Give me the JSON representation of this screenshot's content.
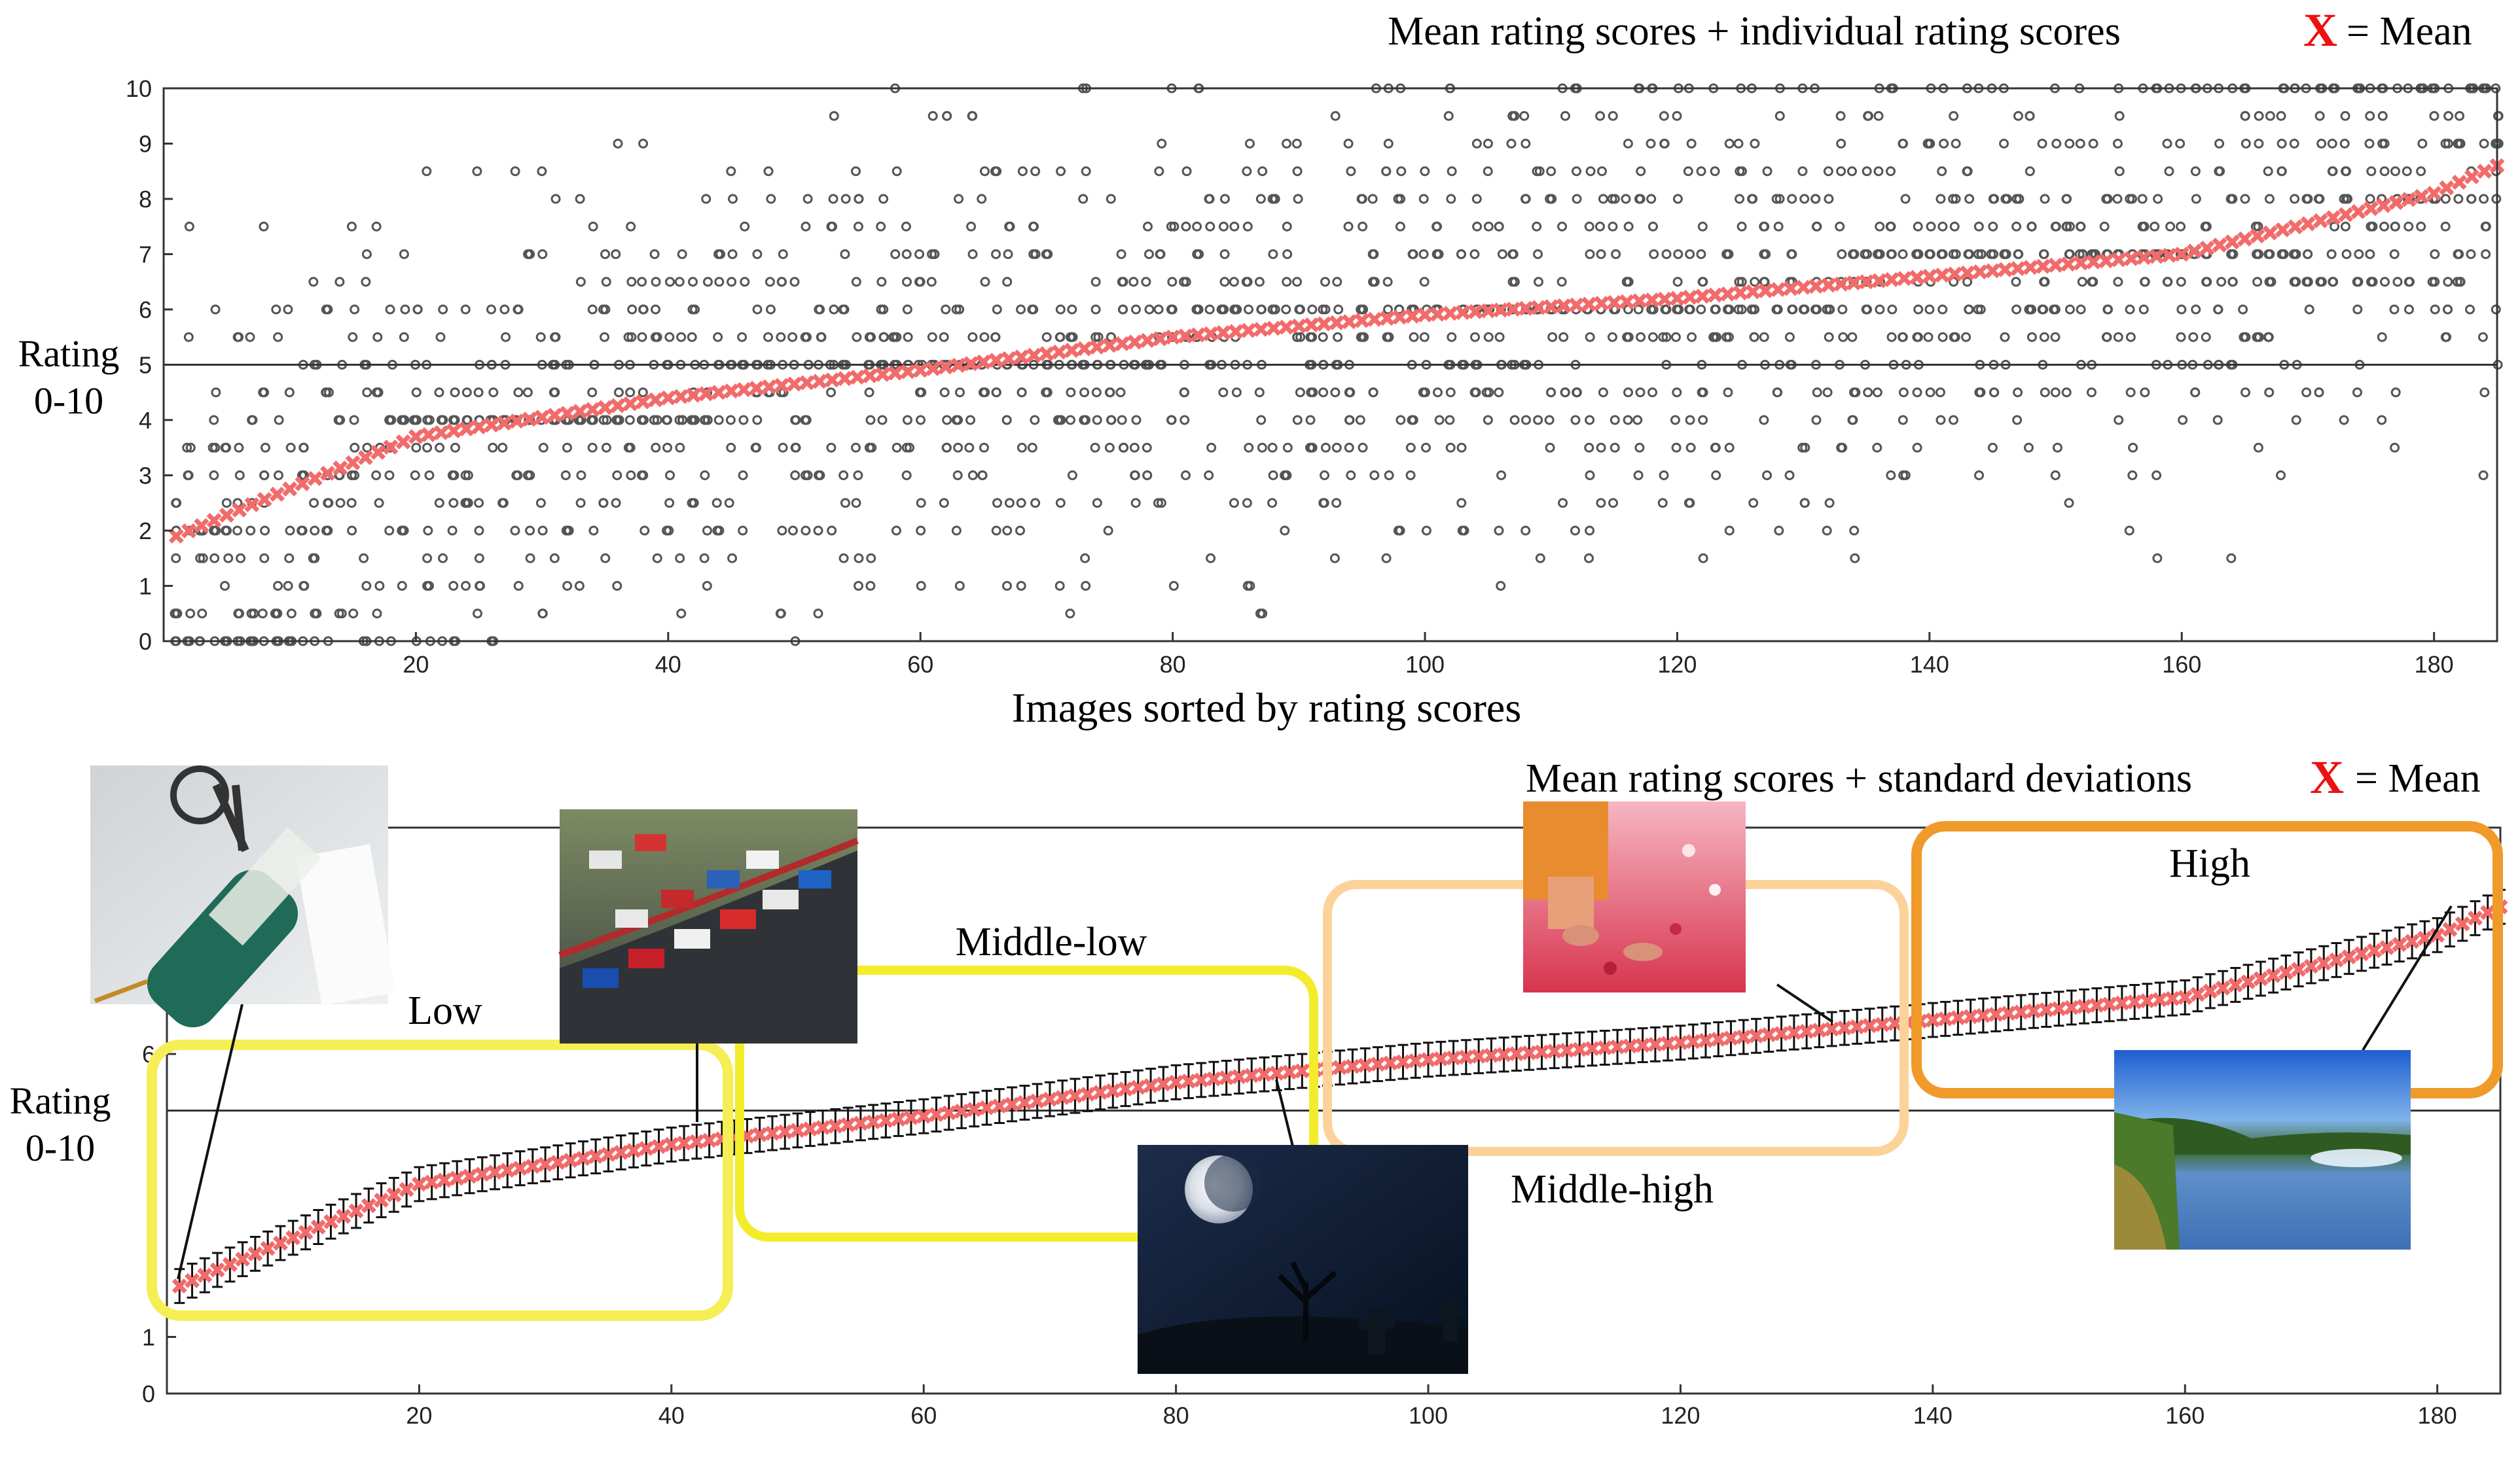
{
  "chart_data": [
    {
      "type": "scatter",
      "title": "Mean rating scores + individual rating scores",
      "legend": {
        "marker": "X",
        "text": "= Mean",
        "marker_color": "#ee1111"
      },
      "xlabel": "Images sorted by rating scores",
      "ylabel": "Rating",
      "ylabel_range_text": "0-10",
      "xlim": [
        0,
        185
      ],
      "ylim": [
        0,
        10
      ],
      "xticks": [
        20,
        40,
        60,
        80,
        100,
        120,
        140,
        160,
        180
      ],
      "yticks": [
        0,
        1,
        2,
        3,
        4,
        5,
        6,
        7,
        8,
        9,
        10
      ],
      "reference_line_y": 5,
      "grid": false,
      "series": [
        {
          "name": "X",
          "color": "#f26b6b",
          "x": [
            1,
            20,
            40,
            60,
            80,
            100,
            120,
            140,
            160,
            180,
            185
          ],
          "y": [
            1.9,
            3.7,
            4.4,
            4.9,
            5.5,
            5.9,
            6.2,
            6.6,
            7.0,
            8.1,
            8.6
          ]
        }
      ],
      "individual_ratings_color": "#555555"
    },
    {
      "type": "line",
      "title": "Mean rating scores + standard deviations",
      "legend": {
        "marker": "X",
        "text": "= Mean",
        "marker_color": "#ee1111"
      },
      "xlabel": "Images sorted by rating scores",
      "ylabel": "Rating",
      "ylabel_range_text": "0-10",
      "xlim": [
        0,
        185
      ],
      "ylim": [
        0,
        10
      ],
      "xticks": [
        20,
        40,
        60,
        80,
        100,
        120,
        140,
        160,
        180
      ],
      "yticks": [
        0,
        1,
        6
      ],
      "reference_line_y": 5,
      "grid": false,
      "series": [
        {
          "name": "X",
          "color": "#f26b6b",
          "x": [
            1,
            20,
            40,
            60,
            80,
            100,
            120,
            140,
            160,
            180,
            185
          ],
          "y": [
            1.9,
            3.7,
            4.4,
            4.9,
            5.5,
            5.9,
            6.2,
            6.6,
            7.0,
            8.1,
            8.6
          ],
          "error": 0.3
        }
      ],
      "categories": [
        {
          "label": "Low",
          "color": "#f5ee55"
        },
        {
          "label": "Middle-low",
          "color": "#f2ec2c"
        },
        {
          "label": "Middle-high",
          "color": "#fbd39a"
        },
        {
          "label": "High",
          "color": "#f09a2a"
        }
      ]
    }
  ]
}
